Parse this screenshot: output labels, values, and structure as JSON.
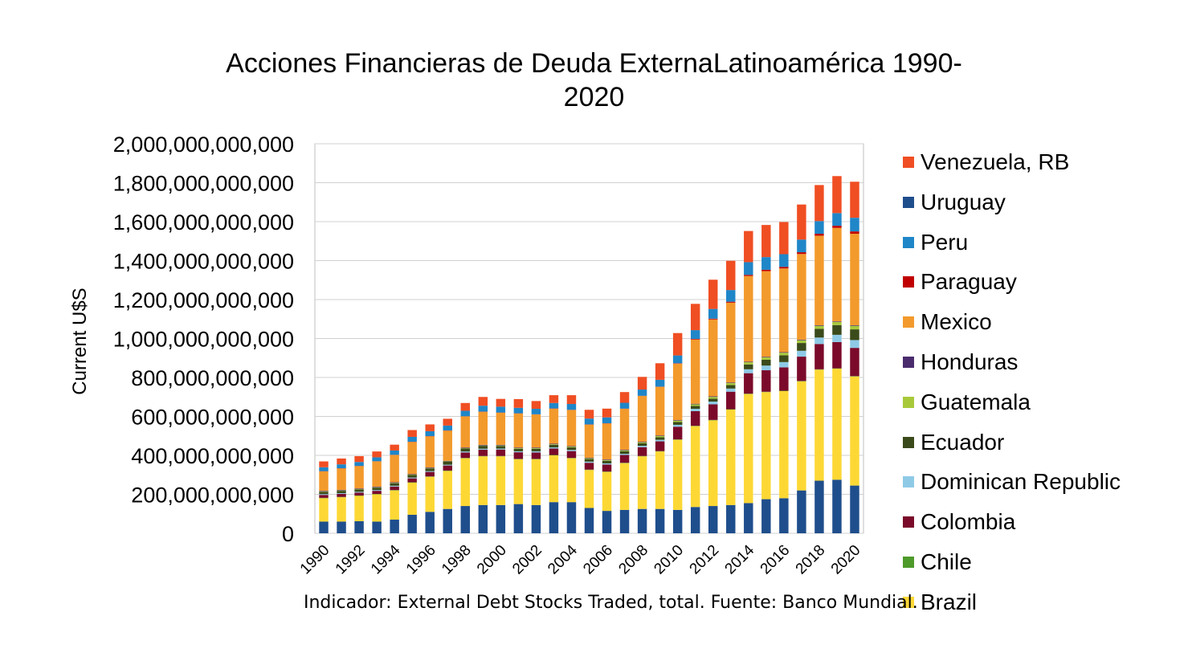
{
  "chart_data": {
    "type": "bar",
    "stacked": true,
    "title_lines": [
      "Acciones Financieras de Deuda ExternaLatinoamérica 1990-",
      "2020"
    ],
    "ylabel": "Current U$S",
    "source_note": "Indicador: External Debt Stocks Traded, total. Fuente: Banco Mundial.",
    "ylim": [
      0,
      2000000000000
    ],
    "yticks": [
      "0",
      "200,000,000,000",
      "400,000,000,000",
      "600,000,000,000",
      "800,000,000,000",
      "1,000,000,000,000",
      "1,200,000,000,000",
      "1,400,000,000,000",
      "1,600,000,000,000",
      "1,800,000,000,000",
      "2,000,000,000,000"
    ],
    "ytick_values": [
      0,
      200000000000,
      400000000000,
      600000000000,
      800000000000,
      1000000000000,
      1200000000000,
      1400000000000,
      1600000000000,
      1800000000000,
      2000000000000
    ],
    "categories": [
      "1990",
      "1991",
      "1992",
      "1993",
      "1994",
      "1995",
      "1996",
      "1997",
      "1998",
      "1999",
      "2000",
      "2001",
      "2002",
      "2003",
      "2004",
      "2005",
      "2006",
      "2007",
      "2008",
      "2009",
      "2010",
      "2011",
      "2012",
      "2013",
      "2014",
      "2015",
      "2016",
      "2017",
      "2018",
      "2019",
      "2020"
    ],
    "xtick_labels": [
      "1990",
      "1992",
      "1994",
      "1996",
      "1998",
      "2000",
      "2002",
      "2004",
      "2006",
      "2008",
      "2010",
      "2012",
      "2014",
      "2016",
      "2018",
      "2020"
    ],
    "grid": "horizontal",
    "legend_position": "right",
    "series": [
      {
        "name": "Uruguay",
        "color": "#1f4e8c",
        "values": [
          60000000000.0,
          60000000000.0,
          62000000000.0,
          60000000000.0,
          70000000000.0,
          95000000000.0,
          110000000000.0,
          125000000000.0,
          140000000000.0,
          145000000000.0,
          145000000000.0,
          150000000000.0,
          145000000000.0,
          160000000000.0,
          160000000000.0,
          130000000000.0,
          115000000000.0,
          120000000000.0,
          125000000000.0,
          125000000000.0,
          120000000000.0,
          135000000000.0,
          140000000000.0,
          145000000000.0,
          155000000000.0,
          175000000000.0,
          180000000000.0,
          220000000000.0,
          270000000000.0,
          275000000000.0,
          245000000000.0
        ]
      },
      {
        "name": "Brazil",
        "color": "#fdd835",
        "values": [
          120000000000.0,
          125000000000.0,
          130000000000.0,
          140000000000.0,
          150000000000.0,
          165000000000.0,
          180000000000.0,
          195000000000.0,
          245000000000.0,
          250000000000.0,
          250000000000.0,
          230000000000.0,
          235000000000.0,
          240000000000.0,
          225000000000.0,
          195000000000.0,
          200000000000.0,
          240000000000.0,
          270000000000.0,
          295000000000.0,
          360000000000.0,
          415000000000.0,
          440000000000.0,
          490000000000.0,
          560000000000.0,
          550000000000.0,
          550000000000.0,
          560000000000.0,
          570000000000.0,
          570000000000.0,
          560000000000.0
        ]
      },
      {
        "name": "Chile",
        "color": "#4e9a2a",
        "values": [
          2000000000.0,
          2000000000.0,
          2000000000.0,
          2000000000.0,
          2000000000.0,
          2000000000.0,
          2000000000.0,
          2000000000.0,
          2000000000.0,
          2000000000.0,
          2000000000.0,
          2000000000.0,
          2000000000.0,
          2000000000.0,
          2000000000.0,
          2000000000.0,
          2000000000.0,
          2000000000.0,
          2000000000.0,
          2000000000.0,
          2000000000.0,
          2000000000.0,
          2000000000.0,
          2000000000.0,
          2000000000.0,
          2000000000.0,
          2000000000.0,
          2000000000.0,
          2000000000.0,
          2000000000.0,
          2000000000.0
        ]
      },
      {
        "name": "Colombia",
        "color": "#7b0a2a",
        "values": [
          15000000000.0,
          15000000000.0,
          15000000000.0,
          16000000000.0,
          18000000000.0,
          20000000000.0,
          23000000000.0,
          26000000000.0,
          28000000000.0,
          32000000000.0,
          33000000000.0,
          34000000000.0,
          33000000000.0,
          33000000000.0,
          35000000000.0,
          35000000000.0,
          36000000000.0,
          40000000000.0,
          45000000000.0,
          50000000000.0,
          65000000000.0,
          75000000000.0,
          80000000000.0,
          90000000000.0,
          105000000000.0,
          110000000000.0,
          120000000000.0,
          125000000000.0,
          130000000000.0,
          135000000000.0,
          145000000000.0
        ]
      },
      {
        "name": "Dominican Republic",
        "color": "#8ecae6",
        "values": [
          4000000000.0,
          4000000000.0,
          4000000000.0,
          4000000000.0,
          4000000000.0,
          4000000000.0,
          4000000000.0,
          4000000000.0,
          5000000000.0,
          5000000000.0,
          5000000000.0,
          5000000000.0,
          6000000000.0,
          6000000000.0,
          6000000000.0,
          6000000000.0,
          6000000000.0,
          6000000000.0,
          7000000000.0,
          8000000000.0,
          10000000000.0,
          12000000000.0,
          14000000000.0,
          16000000000.0,
          20000000000.0,
          24000000000.0,
          27000000000.0,
          30000000000.0,
          33000000000.0,
          37000000000.0,
          40000000000.0
        ]
      },
      {
        "name": "Ecuador",
        "color": "#3b4a1a",
        "values": [
          12000000000.0,
          12000000000.0,
          12000000000.0,
          12000000000.0,
          13000000000.0,
          13000000000.0,
          14000000000.0,
          15000000000.0,
          15000000000.0,
          15000000000.0,
          13000000000.0,
          13000000000.0,
          13000000000.0,
          13000000000.0,
          13000000000.0,
          13000000000.0,
          13000000000.0,
          13000000000.0,
          13000000000.0,
          13000000000.0,
          14000000000.0,
          15000000000.0,
          15000000000.0,
          18000000000.0,
          25000000000.0,
          30000000000.0,
          35000000000.0,
          40000000000.0,
          45000000000.0,
          50000000000.0,
          55000000000.0
        ]
      },
      {
        "name": "Guatemala",
        "color": "#a8c93a",
        "values": [
          2000000000.0,
          2000000000.0,
          2000000000.0,
          2000000000.0,
          2000000000.0,
          2000000000.0,
          2000000000.0,
          2000000000.0,
          2000000000.0,
          2000000000.0,
          3000000000.0,
          3000000000.0,
          3000000000.0,
          3000000000.0,
          4000000000.0,
          4000000000.0,
          4000000000.0,
          5000000000.0,
          5000000000.0,
          6000000000.0,
          7000000000.0,
          8000000000.0,
          9000000000.0,
          10000000000.0,
          11000000000.0,
          12000000000.0,
          13000000000.0,
          14000000000.0,
          15000000000.0,
          16000000000.0,
          18000000000.0
        ]
      },
      {
        "name": "Honduras",
        "color": "#4a2c6e",
        "values": [
          3000000000.0,
          3000000000.0,
          3000000000.0,
          3000000000.0,
          3000000000.0,
          3000000000.0,
          3000000000.0,
          3000000000.0,
          3000000000.0,
          3000000000.0,
          3000000000.0,
          3000000000.0,
          3000000000.0,
          3000000000.0,
          3000000000.0,
          3000000000.0,
          3000000000.0,
          3000000000.0,
          3000000000.0,
          3000000000.0,
          3000000000.0,
          3000000000.0,
          3000000000.0,
          3000000000.0,
          3000000000.0,
          3000000000.0,
          3000000000.0,
          3000000000.0,
          3000000000.0,
          3000000000.0,
          3000000000.0
        ]
      },
      {
        "name": "Mexico",
        "color": "#f39a2c",
        "values": [
          100000000000.0,
          110000000000.0,
          115000000000.0,
          130000000000.0,
          140000000000.0,
          165000000000.0,
          160000000000.0,
          155000000000.0,
          160000000000.0,
          170000000000.0,
          165000000000.0,
          175000000000.0,
          170000000000.0,
          180000000000.0,
          185000000000.0,
          170000000000.0,
          185000000000.0,
          210000000000.0,
          235000000000.0,
          250000000000.0,
          290000000000.0,
          330000000000.0,
          395000000000.0,
          410000000000.0,
          440000000000.0,
          440000000000.0,
          430000000000.0,
          440000000000.0,
          460000000000.0,
          480000000000.0,
          470000000000.0
        ]
      },
      {
        "name": "Paraguay",
        "color": "#c00000",
        "values": [
          1000000000.0,
          1000000000.0,
          1000000000.0,
          1000000000.0,
          1000000000.0,
          1000000000.0,
          1000000000.0,
          1000000000.0,
          1000000000.0,
          1000000000.0,
          1000000000.0,
          1000000000.0,
          1000000000.0,
          1000000000.0,
          1000000000.0,
          1000000000.0,
          1000000000.0,
          1000000000.0,
          1000000000.0,
          1000000000.0,
          2000000000.0,
          3000000000.0,
          4000000000.0,
          5000000000.0,
          6000000000.0,
          7000000000.0,
          8000000000.0,
          9000000000.0,
          10000000000.0,
          11000000000.0,
          12000000000.0
        ]
      },
      {
        "name": "Peru",
        "color": "#1f86c8",
        "values": [
          20000000000.0,
          20000000000.0,
          20000000000.0,
          20000000000.0,
          22000000000.0,
          25000000000.0,
          25000000000.0,
          25000000000.0,
          28000000000.0,
          30000000000.0,
          30000000000.0,
          28000000000.0,
          28000000000.0,
          28000000000.0,
          30000000000.0,
          30000000000.0,
          30000000000.0,
          30000000000.0,
          32000000000.0,
          35000000000.0,
          40000000000.0,
          45000000000.0,
          50000000000.0,
          60000000000.0,
          65000000000.0,
          65000000000.0,
          65000000000.0,
          65000000000.0,
          65000000000.0,
          65000000000.0,
          70000000000.0
        ]
      },
      {
        "name": "Venezuela, RB",
        "color": "#f04e23",
        "values": [
          30000000000.0,
          30000000000.0,
          30000000000.0,
          30000000000.0,
          30000000000.0,
          35000000000.0,
          35000000000.0,
          35000000000.0,
          40000000000.0,
          45000000000.0,
          40000000000.0,
          45000000000.0,
          40000000000.0,
          40000000000.0,
          45000000000.0,
          45000000000.0,
          45000000000.0,
          55000000000.0,
          65000000000.0,
          85000000000.0,
          115000000000.0,
          135000000000.0,
          150000000000.0,
          150000000000.0,
          160000000000.0,
          165000000000.0,
          165000000000.0,
          180000000000.0,
          185000000000.0,
          190000000000.0,
          185000000000.0
        ]
      }
    ],
    "legend_order": [
      "Venezuela, RB",
      "Uruguay",
      "Peru",
      "Paraguay",
      "Mexico",
      "Honduras",
      "Guatemala",
      "Ecuador",
      "Dominican Republic",
      "Colombia",
      "Chile",
      "Brazil"
    ]
  }
}
